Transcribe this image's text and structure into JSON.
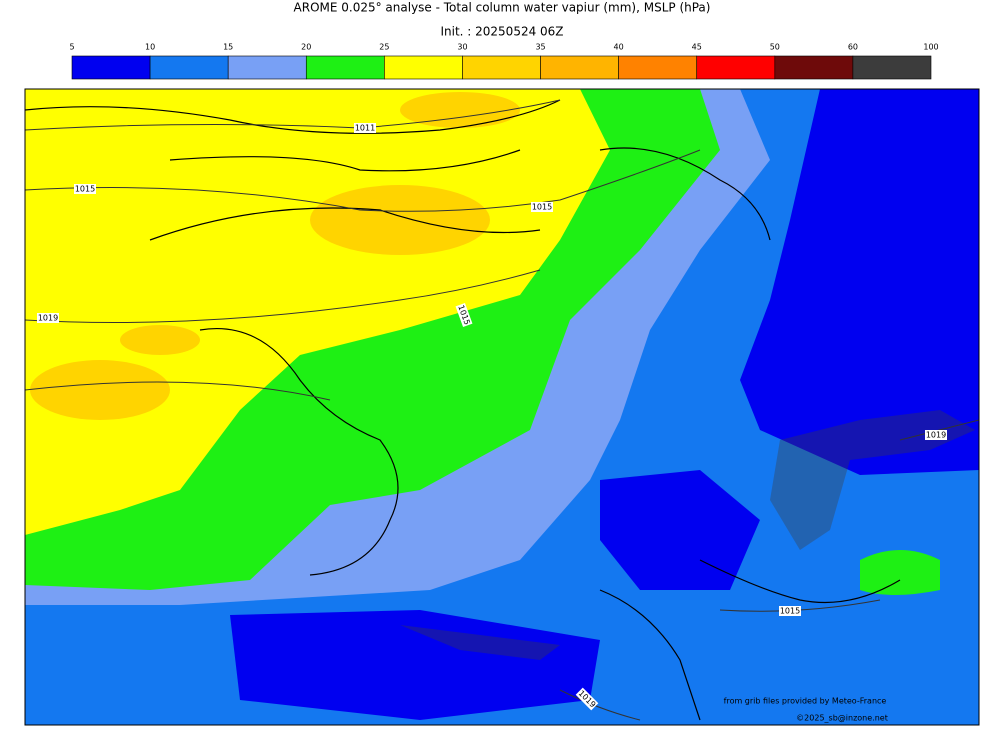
{
  "title": "AROME 0.025° analyse - Total column water vapiur (mm), MSLP (hPa)",
  "subtitle": "Init. : 20250524 06Z",
  "colorbar": {
    "ticks": [
      5,
      10,
      15,
      20,
      25,
      30,
      35,
      40,
      45,
      50,
      60,
      100
    ],
    "colors": [
      "#0000f0",
      "#1478f0",
      "#78a0f5",
      "#1ef014",
      "#ffff00",
      "#ffd400",
      "#ffb400",
      "#ff8200",
      "#ff0000",
      "#6e0a0a",
      "#3c3c3c"
    ]
  },
  "isobar_labels": [
    "1011",
    "1015",
    "1015",
    "1019",
    "1015",
    "1019",
    "1015",
    "1019"
  ],
  "credits": [
    "from grib files provided by Meteo-France",
    "©2025_sb@inzone.net"
  ]
}
